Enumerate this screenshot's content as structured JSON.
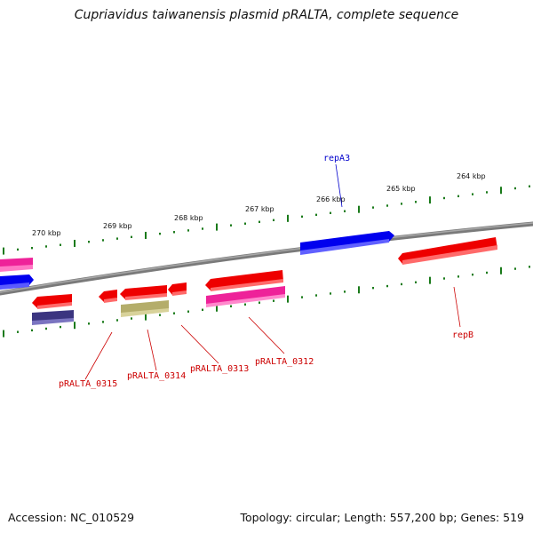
{
  "title": "Cupriavidus taiwanensis plasmid pRALTA, complete sequence",
  "footer": {
    "accession": "Accession: NC_010529",
    "summary": "Topology: circular; Length: 557,200 bp; Genes: 519"
  },
  "tick_labels": [
    "270 kbp",
    "269 kbp",
    "268 kbp",
    "267 kbp",
    "266 kbp",
    "265 kbp",
    "264 kbp"
  ],
  "gene_labels": [
    {
      "name": "repA3",
      "color": "#0000cc"
    },
    {
      "name": "repB",
      "color": "#cc0000"
    },
    {
      "name": "pRALTA_0315",
      "color": "#cc0000"
    },
    {
      "name": "pRALTA_0314",
      "color": "#cc0000"
    },
    {
      "name": "pRALTA_0313",
      "color": "#cc0000"
    },
    {
      "name": "pRALTA_0312",
      "color": "#cc0000"
    }
  ],
  "colors": {
    "backbone": "#808080",
    "tick": "#1a7a1a",
    "gene_red": "#ee0000",
    "gene_blue": "#0000ee",
    "gene_pink": "#ee2299",
    "gene_navy": "#3b3580",
    "gene_khaki": "#b4ad6a"
  }
}
